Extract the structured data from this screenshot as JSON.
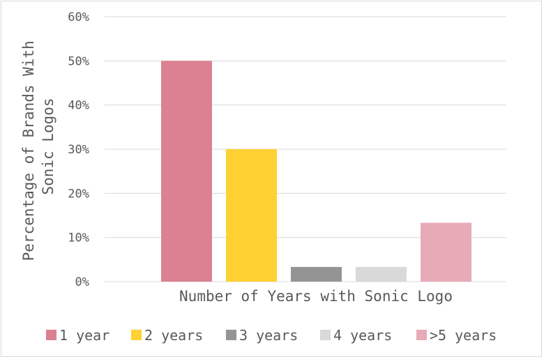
{
  "chart_data": {
    "type": "bar",
    "categories": [
      "1 year",
      "2 years",
      "3 years",
      "4 years",
      ">5 years"
    ],
    "values": [
      50,
      30,
      3.33,
      3.33,
      13.33
    ],
    "colors": [
      "#DC8192",
      "#FFD133",
      "#949494",
      "#D9D9D9",
      "#E8AAB7"
    ],
    "xlabel": "Number of Years with Sonic Logo",
    "ylabel_lines": [
      "Percentage of Brands With",
      "Sonic Logos"
    ],
    "ylim": [
      0,
      60
    ],
    "y_ticks": [
      0,
      10,
      20,
      30,
      40,
      50,
      60
    ],
    "y_tick_labels": [
      "0%",
      "10%",
      "20%",
      "30%",
      "40%",
      "50%",
      "60%"
    ],
    "grid": true,
    "legend": {
      "position": "bottom",
      "entries": [
        "1 year",
        "2 years",
        "3 years",
        "4 years",
        ">5 years"
      ]
    }
  }
}
